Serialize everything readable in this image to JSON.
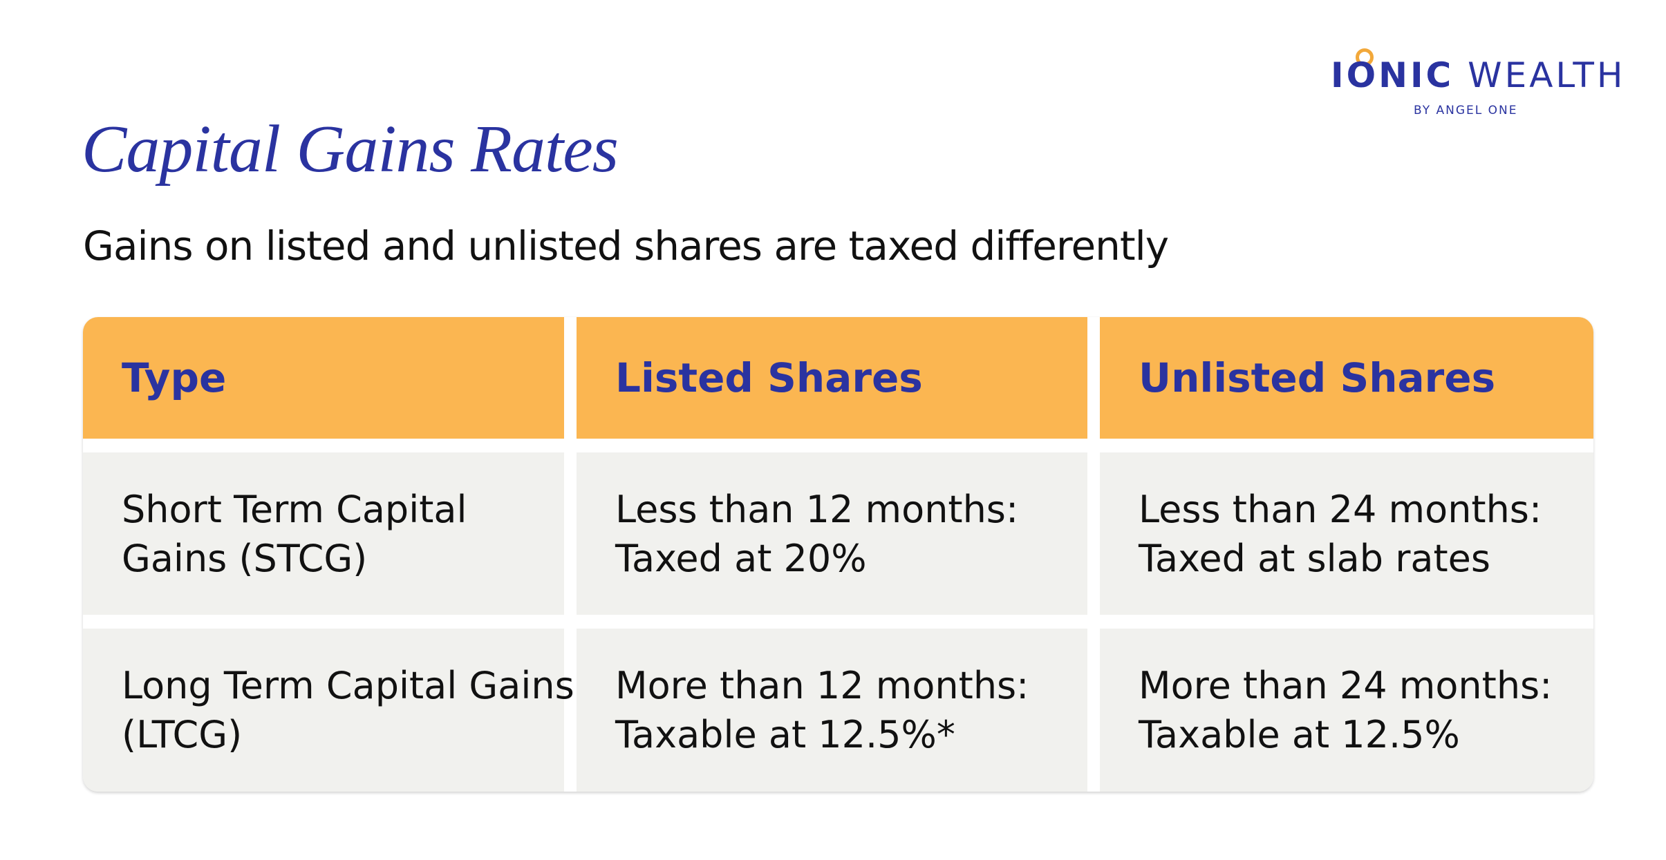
{
  "logo": {
    "brand": "IONIC",
    "name": "WEALTH",
    "tagline": "BY ANGEL ONE"
  },
  "title": "Capital Gains Rates",
  "subtitle": "Gains on listed and unlisted shares are taxed differently",
  "table": {
    "headers": [
      "Type",
      "Listed Shares",
      "Unlisted Shares"
    ],
    "rows": [
      [
        [
          "Short Term Capital",
          "Gains (STCG)"
        ],
        [
          "Less than 12 months:",
          "Taxed at 20%"
        ],
        [
          "Less than 24 months:",
          "Taxed at slab rates"
        ]
      ],
      [
        [
          "Long Term Capital Gains",
          "(LTCG)"
        ],
        [
          "More than 12 months:",
          "Taxable at 12.5%*"
        ],
        [
          "More than 24 months:",
          "Taxable at 12.5%"
        ]
      ]
    ]
  }
}
